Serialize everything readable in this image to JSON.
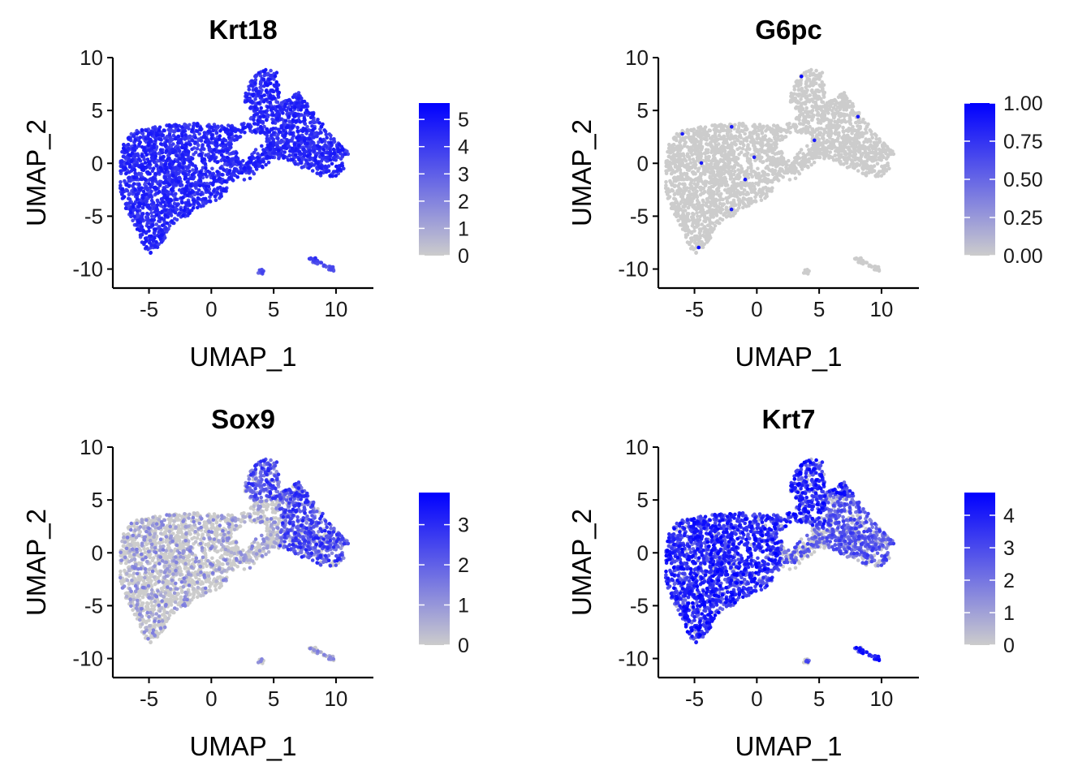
{
  "figure": {
    "colors": {
      "low": "#CCCCCC",
      "high": "#0000FF",
      "axis": "#000000",
      "text": "#1A1A1A"
    }
  },
  "chart_data": [
    {
      "type": "scatter",
      "title": "Krt18",
      "xlabel": "UMAP_1",
      "ylabel": "UMAP_2",
      "xlim": [
        -7.9,
        13.0
      ],
      "ylim": [
        -11.8,
        10.0
      ],
      "xticks": [
        -5,
        0,
        5,
        10
      ],
      "yticks": [
        -10,
        -5,
        0,
        5,
        10
      ],
      "legend": {
        "position": "right",
        "min": 0,
        "max": 5.6,
        "ticks": [
          0,
          1,
          2,
          3,
          4,
          5
        ]
      },
      "expression_profile": "uniform_high",
      "grid": false
    },
    {
      "type": "scatter",
      "title": "G6pc",
      "xlabel": "UMAP_1",
      "ylabel": "UMAP_2",
      "xlim": [
        -7.9,
        13.0
      ],
      "ylim": [
        -11.8,
        10.0
      ],
      "xticks": [
        -5,
        0,
        5,
        10
      ],
      "yticks": [
        -10,
        -5,
        0,
        5,
        10
      ],
      "legend": {
        "position": "right",
        "min": 0,
        "max": 1.0,
        "ticks": [
          "0.00",
          "0.25",
          "0.50",
          "0.75",
          "1.00"
        ]
      },
      "expression_profile": "sparse",
      "grid": false
    },
    {
      "type": "scatter",
      "title": "Sox9",
      "xlabel": "UMAP_1",
      "ylabel": "UMAP_2",
      "xlim": [
        -7.9,
        13.0
      ],
      "ylim": [
        -11.8,
        10.0
      ],
      "xticks": [
        -5,
        0,
        5,
        10
      ],
      "yticks": [
        -10,
        -5,
        0,
        5,
        10
      ],
      "legend": {
        "position": "right",
        "min": 0,
        "max": 3.8,
        "ticks": [
          0,
          1,
          2,
          3
        ]
      },
      "expression_profile": "right_cluster",
      "grid": false
    },
    {
      "type": "scatter",
      "title": "Krt7",
      "xlabel": "UMAP_1",
      "ylabel": "UMAP_2",
      "xlim": [
        -7.9,
        13.0
      ],
      "ylim": [
        -11.8,
        10.0
      ],
      "xticks": [
        -5,
        0,
        5,
        10
      ],
      "yticks": [
        -10,
        -5,
        0,
        5,
        10
      ],
      "legend": {
        "position": "right",
        "min": 0,
        "max": 4.7,
        "ticks": [
          0,
          1,
          2,
          3,
          4
        ]
      },
      "expression_profile": "left_high",
      "grid": false
    }
  ]
}
